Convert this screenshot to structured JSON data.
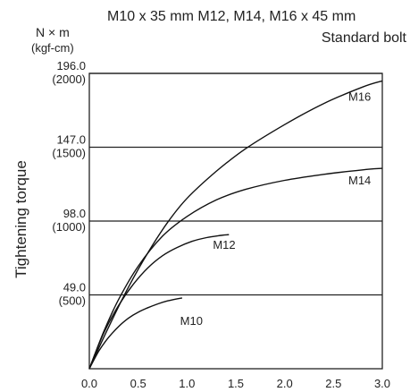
{
  "header": {
    "line1": "M10 x 35 mm M12, M14, M16 x 45 mm",
    "line2": "Standard bolt"
  },
  "chart_data": {
    "type": "line",
    "unit_top": "N × m",
    "unit_sub": "(kgf-cm)",
    "ylabel": "Tightening torque",
    "xlabel": "",
    "xlim": [
      0,
      3.0
    ],
    "ylim": [
      0,
      196.0
    ],
    "grid": "horizontal",
    "x_ticks": [
      "0.0",
      "0.5",
      "1.0",
      "1.5",
      "2.0",
      "2.5",
      "3.0"
    ],
    "y_ticks": [
      {
        "value": 196.0,
        "label": "196.0",
        "sub": "(2000)"
      },
      {
        "value": 147.0,
        "label": "147.0",
        "sub": "(1500)"
      },
      {
        "value": 98.0,
        "label": "98.0",
        "sub": "(1000)"
      },
      {
        "value": 49.0,
        "label": "49.0",
        "sub": "(500)"
      }
    ],
    "series": [
      {
        "name": "M10",
        "x": [
          0,
          0.1,
          0.2,
          0.3,
          0.4,
          0.5,
          0.6,
          0.7,
          0.8,
          0.95
        ],
        "y": [
          0,
          12,
          21,
          28,
          33.5,
          37.5,
          40.5,
          43,
          45,
          47
        ]
      },
      {
        "name": "M12",
        "x": [
          0,
          0.15,
          0.3,
          0.45,
          0.6,
          0.75,
          0.9,
          1.05,
          1.2,
          1.35,
          1.43
        ],
        "y": [
          0,
          24,
          42,
          56,
          67,
          75,
          80.5,
          84.5,
          87,
          88.5,
          89
        ]
      },
      {
        "name": "M14",
        "x": [
          0,
          0.15,
          0.3,
          0.5,
          0.75,
          1.0,
          1.3,
          1.6,
          2.0,
          2.4,
          2.8,
          3.0
        ],
        "y": [
          0,
          25,
          46,
          68,
          88,
          101,
          112,
          119,
          125,
          129,
          132,
          133
        ]
      },
      {
        "name": "M16",
        "x": [
          0,
          0.2,
          0.4,
          0.6,
          0.8,
          1.0,
          1.3,
          1.6,
          2.0,
          2.4,
          2.8,
          3.0
        ],
        "y": [
          0,
          28,
          54,
          77,
          97,
          113,
          131,
          146,
          162,
          176,
          187,
          191
        ]
      }
    ]
  }
}
